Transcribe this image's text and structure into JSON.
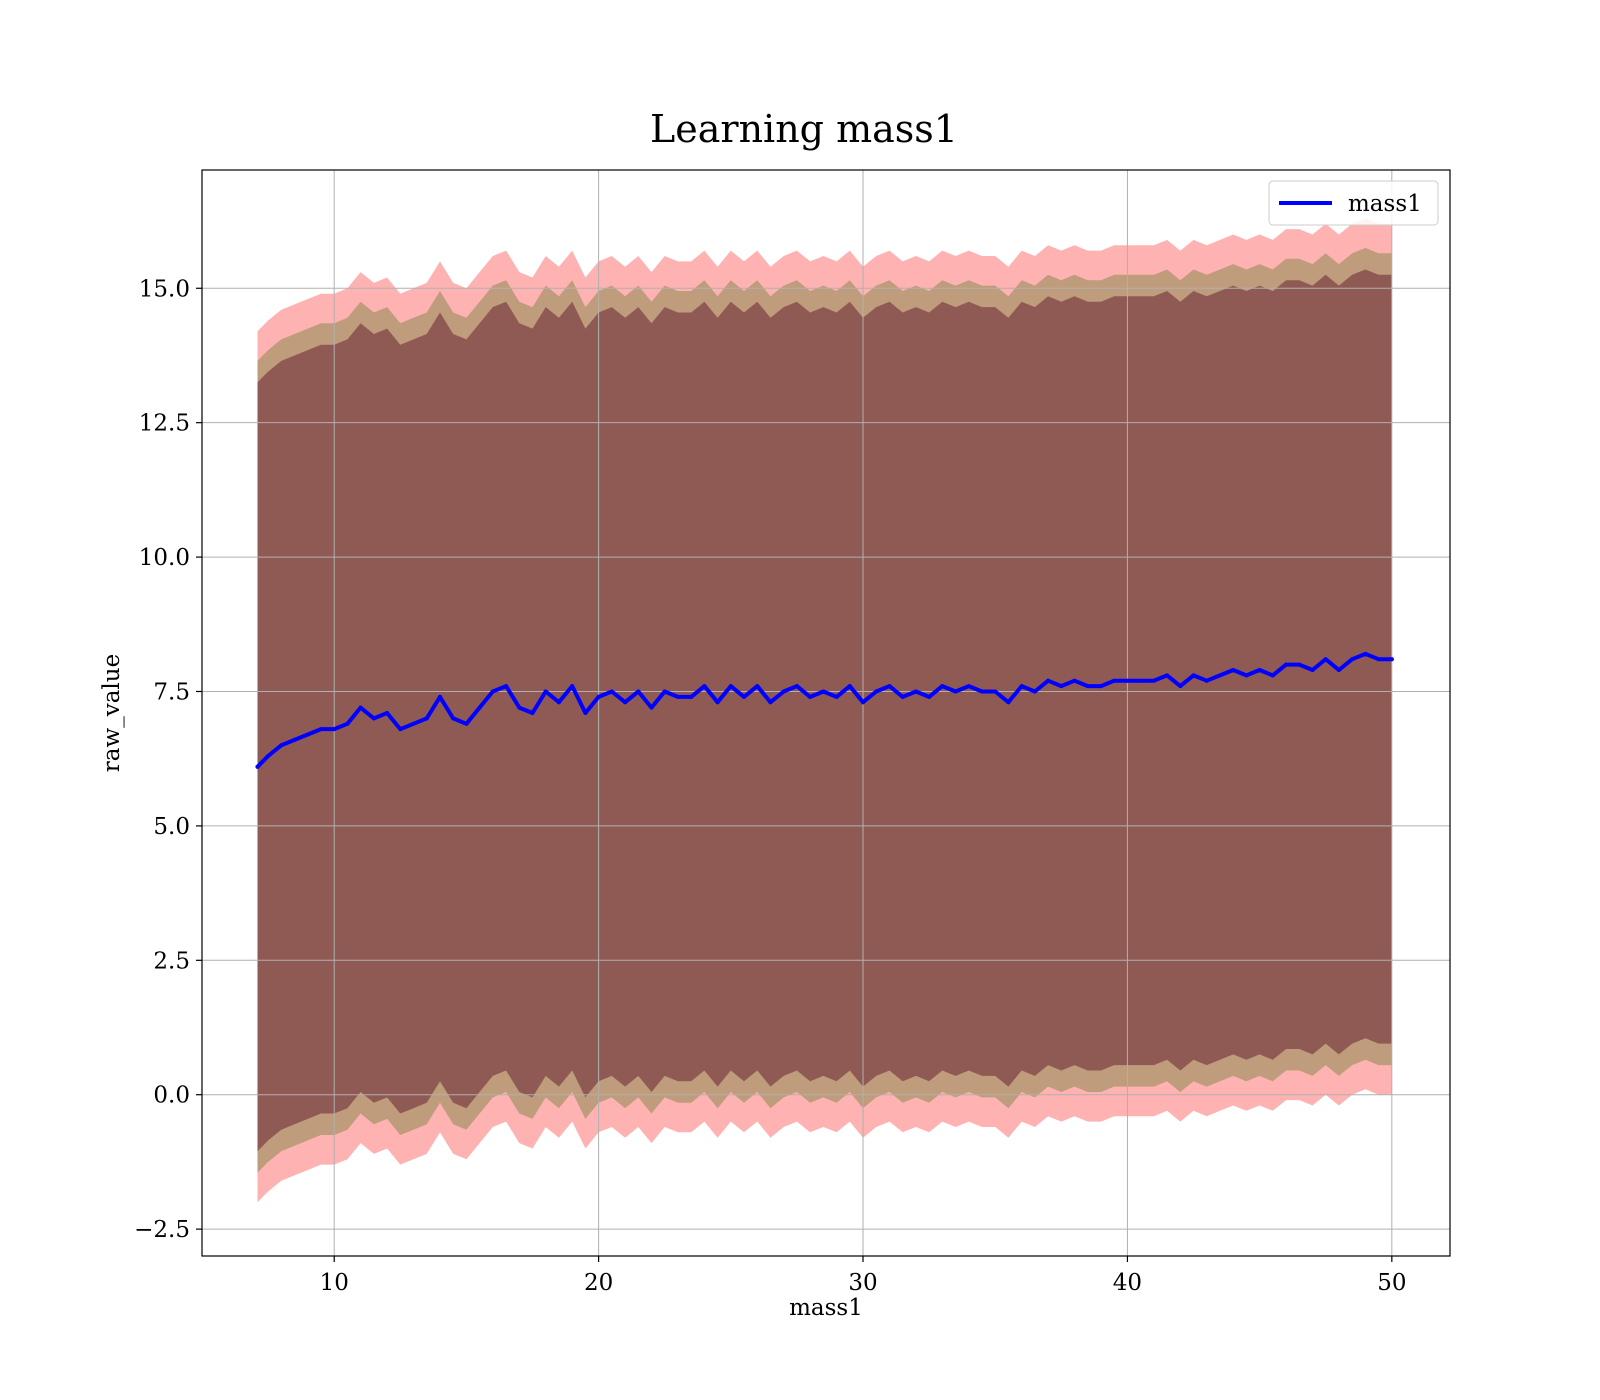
{
  "chart_data": {
    "type": "line",
    "title": "Learning mass1",
    "xlabel": "mass1",
    "ylabel": "raw_value",
    "xlim": [
      5,
      52.2
    ],
    "ylim": [
      -3.0,
      17.2
    ],
    "xticks": [
      10,
      20,
      30,
      40,
      50
    ],
    "xtick_labels": [
      "10",
      "20",
      "30",
      "40",
      "50"
    ],
    "yticks": [
      -2.5,
      0.0,
      2.5,
      5.0,
      7.5,
      10.0,
      12.5,
      15.0
    ],
    "ytick_labels": [
      "−2.5",
      "0.0",
      "2.5",
      "5.0",
      "7.5",
      "10.0",
      "12.5",
      "15.0"
    ],
    "grid": true,
    "legend": {
      "placement": "top-right",
      "entries": [
        "mass1"
      ]
    },
    "colors": {
      "line": "#0000ff",
      "outer_band": "#ff0000",
      "mid_band": "#708038",
      "inner_band": "#6a2434"
    },
    "series": [
      {
        "name": "mass1",
        "x": [
          7.1,
          7.5,
          8.0,
          8.5,
          9.0,
          9.5,
          10.0,
          10.5,
          11.0,
          11.5,
          12.0,
          12.5,
          13.0,
          13.5,
          14.0,
          14.5,
          15.0,
          15.5,
          16.0,
          16.5,
          17.0,
          17.5,
          18.0,
          18.5,
          19.0,
          19.5,
          20.0,
          20.5,
          21.0,
          21.5,
          22.0,
          22.5,
          23.0,
          23.5,
          24.0,
          24.5,
          25.0,
          25.5,
          26.0,
          26.5,
          27.0,
          27.5,
          28.0,
          28.5,
          29.0,
          29.5,
          30.0,
          30.5,
          31.0,
          31.5,
          32.0,
          32.5,
          33.0,
          33.5,
          34.0,
          34.5,
          35.0,
          35.5,
          36.0,
          36.5,
          37.0,
          37.5,
          38.0,
          38.5,
          39.0,
          39.5,
          40.0,
          40.5,
          41.0,
          41.5,
          42.0,
          42.5,
          43.0,
          43.5,
          44.0,
          44.5,
          45.0,
          45.5,
          46.0,
          46.5,
          47.0,
          47.5,
          48.0,
          48.5,
          49.0,
          49.5,
          50.0
        ],
        "y": [
          6.1,
          6.3,
          6.5,
          6.6,
          6.7,
          6.8,
          6.8,
          6.9,
          7.2,
          7.0,
          7.1,
          6.8,
          6.9,
          7.0,
          7.4,
          7.0,
          6.9,
          7.2,
          7.5,
          7.6,
          7.2,
          7.1,
          7.5,
          7.3,
          7.6,
          7.1,
          7.4,
          7.5,
          7.3,
          7.5,
          7.2,
          7.5,
          7.4,
          7.4,
          7.6,
          7.3,
          7.6,
          7.4,
          7.6,
          7.3,
          7.5,
          7.6,
          7.4,
          7.5,
          7.4,
          7.6,
          7.3,
          7.5,
          7.6,
          7.4,
          7.5,
          7.4,
          7.6,
          7.5,
          7.6,
          7.5,
          7.5,
          7.3,
          7.6,
          7.5,
          7.7,
          7.6,
          7.7,
          7.6,
          7.6,
          7.7,
          7.7,
          7.7,
          7.7,
          7.8,
          7.6,
          7.8,
          7.7,
          7.8,
          7.9,
          7.8,
          7.9,
          7.8,
          8.0,
          8.0,
          7.9,
          8.1,
          7.9,
          8.1,
          8.2,
          8.1,
          8.1
        ]
      }
    ],
    "bands": {
      "outer_halfwidth": 8.1,
      "mid_halfwidth": 7.55,
      "inner_halfwidth": 7.15
    }
  }
}
